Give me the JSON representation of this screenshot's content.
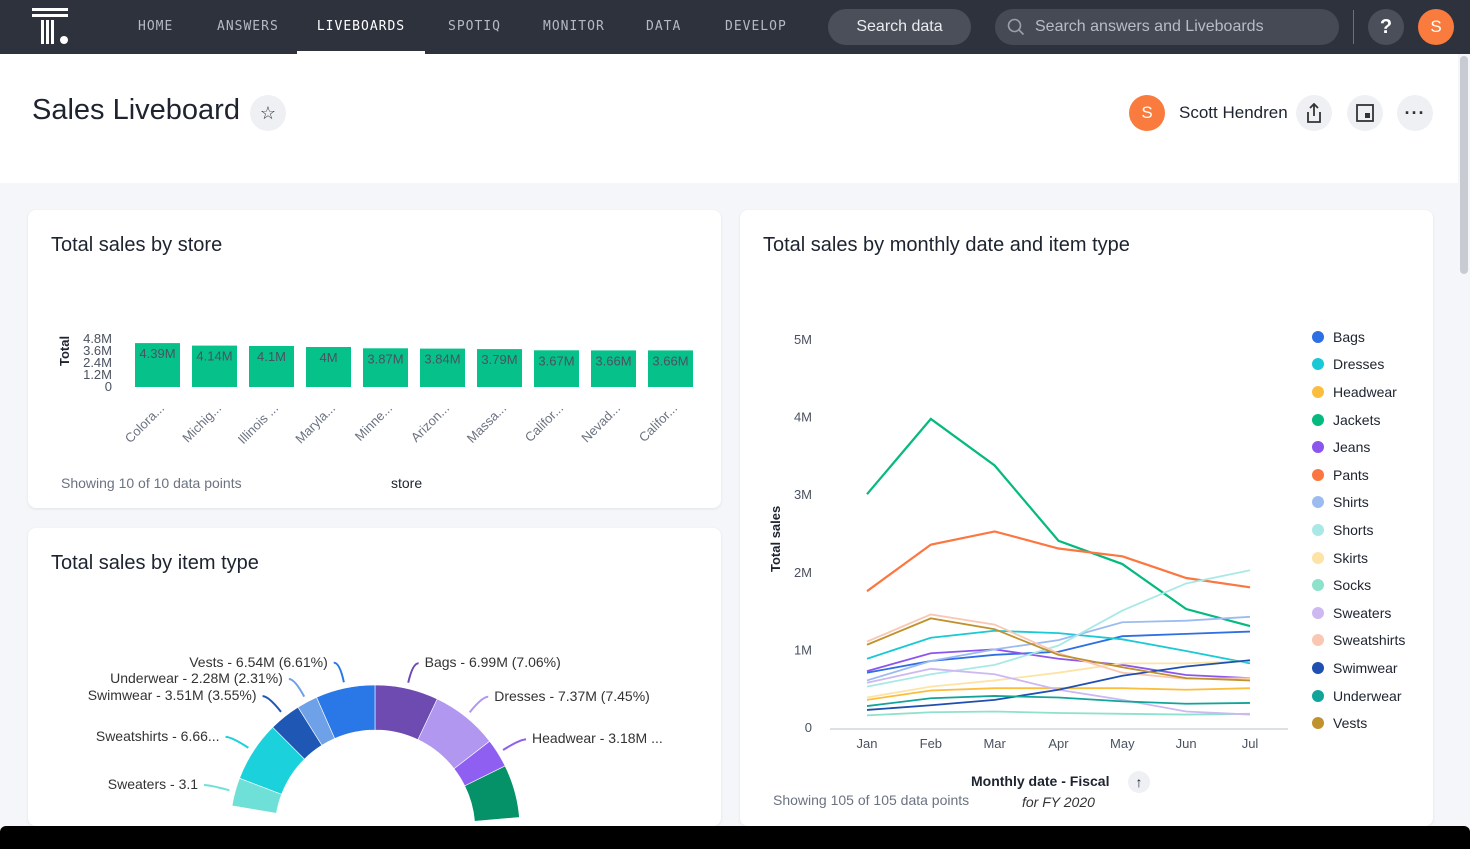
{
  "nav": {
    "items": [
      "HOME",
      "ANSWERS",
      "LIVEBOARDS",
      "SPOTIQ",
      "MONITOR",
      "DATA",
      "DEVELOP"
    ],
    "active": "LIVEBOARDS",
    "search_data": "Search data",
    "search_placeholder": "Search answers and Liveboards",
    "help": "?",
    "avatar": "S"
  },
  "header": {
    "title": "Sales Liveboard",
    "user_initial": "S",
    "user_name": "Scott Hendren"
  },
  "chart_data": [
    {
      "type": "bar",
      "title": "Total sales by store",
      "ylabel": "Total",
      "xlabel": "store",
      "yticks": [
        "4.8M",
        "3.6M",
        "2.4M",
        "1.2M",
        "0"
      ],
      "ylim": [
        0,
        4.8
      ],
      "categories": [
        "Colora...",
        "Michig...",
        "Illinois ...",
        "Maryla...",
        "Minne...",
        "Arizon...",
        "Massa...",
        "Califor...",
        "Nevad...",
        "Califor..."
      ],
      "values": [
        4.39,
        4.14,
        4.1,
        4.0,
        3.87,
        3.84,
        3.79,
        3.67,
        3.66,
        3.66
      ],
      "labels": [
        "4.39M",
        "4.14M",
        "4.1M",
        "4M",
        "3.87M",
        "3.84M",
        "3.79M",
        "3.67M",
        "3.66M",
        "3.66M"
      ],
      "color": "#06c189",
      "footer": "Showing 10 of 10 data points"
    },
    {
      "type": "line",
      "title": "Total sales by monthly date and item type",
      "ylabel": "Total sales",
      "xlabel": "Monthly date - Fiscal",
      "xsub": "for FY 2020",
      "ylim": [
        0,
        5
      ],
      "yticks": [
        "5M",
        "4M",
        "3M",
        "2M",
        "1M",
        "0"
      ],
      "x": [
        "Jan",
        "Feb",
        "Mar",
        "Apr",
        "May",
        "Jun",
        "Jul"
      ],
      "footer": "Showing 105 of 105 data points",
      "legend": "right",
      "series": [
        {
          "name": "Bags",
          "color": "#2f6fe4",
          "values": [
            0.7,
            0.85,
            0.93,
            0.97,
            1.17,
            1.2,
            1.23
          ]
        },
        {
          "name": "Dresses",
          "color": "#1bc8d6",
          "values": [
            0.88,
            1.15,
            1.24,
            1.21,
            1.13,
            0.98,
            0.82
          ]
        },
        {
          "name": "Headwear",
          "color": "#fbbd3d",
          "values": [
            0.35,
            0.47,
            0.5,
            0.5,
            0.5,
            0.48,
            0.5
          ]
        },
        {
          "name": "Jackets",
          "color": "#06b97f",
          "values": [
            3.0,
            3.97,
            3.37,
            2.4,
            2.1,
            1.52,
            1.3
          ]
        },
        {
          "name": "Jeans",
          "color": "#8c55ee",
          "values": [
            0.72,
            0.95,
            1.0,
            0.88,
            0.8,
            0.67,
            0.63
          ]
        },
        {
          "name": "Pants",
          "color": "#fb7640",
          "values": [
            1.75,
            2.35,
            2.52,
            2.3,
            2.2,
            1.92,
            1.8
          ]
        },
        {
          "name": "Shirts",
          "color": "#9cbcf1",
          "values": [
            0.6,
            0.85,
            1.0,
            1.12,
            1.35,
            1.37,
            1.42
          ]
        },
        {
          "name": "Shorts",
          "color": "#a8e9e6",
          "values": [
            0.52,
            0.68,
            0.8,
            1.05,
            1.5,
            1.85,
            2.02
          ]
        },
        {
          "name": "Skirts",
          "color": "#fde3a6",
          "values": [
            0.38,
            0.52,
            0.6,
            0.7,
            0.82,
            0.82,
            0.85
          ]
        },
        {
          "name": "Socks",
          "color": "#8ee1cc",
          "values": [
            0.15,
            0.19,
            0.2,
            0.18,
            0.17,
            0.16,
            0.17
          ]
        },
        {
          "name": "Sweaters",
          "color": "#cdb8f2",
          "values": [
            0.57,
            0.75,
            0.68,
            0.48,
            0.35,
            0.2,
            0.16
          ]
        },
        {
          "name": "Sweatshirts",
          "color": "#fac7b3",
          "values": [
            1.1,
            1.45,
            1.32,
            0.95,
            0.7,
            0.62,
            0.63
          ]
        },
        {
          "name": "Swimwear",
          "color": "#1f4fb0",
          "values": [
            0.22,
            0.28,
            0.35,
            0.48,
            0.66,
            0.78,
            0.86
          ]
        },
        {
          "name": "Underwear",
          "color": "#11a59a",
          "values": [
            0.27,
            0.37,
            0.4,
            0.38,
            0.33,
            0.3,
            0.31
          ]
        },
        {
          "name": "Vests",
          "color": "#c0922e",
          "values": [
            1.06,
            1.4,
            1.26,
            0.93,
            0.77,
            0.63,
            0.6
          ]
        }
      ]
    },
    {
      "type": "pie",
      "title": "Total sales by item type",
      "clockwise": [
        {
          "label": "Bags - 6.99M (7.06%)",
          "pct": 7.06,
          "color": "#6d4bb0"
        },
        {
          "label": "Dresses - 7.37M (7.45%)",
          "pct": 7.45,
          "color": "#b197f0"
        },
        {
          "label": "Headwear - 3.18M ...",
          "pct": 3.21,
          "color": "#8e5ff0"
        },
        {
          "label": "",
          "pct": 20,
          "color": "#069268"
        }
      ],
      "counterclockwise": [
        {
          "label": "Vests - 6.54M (6.61%)",
          "pct": 6.61,
          "color": "#2a78e8"
        },
        {
          "label": "Underwear - 2.28M (2.31%)",
          "pct": 2.31,
          "color": "#6fa1e8"
        },
        {
          "label": "Swimwear - 3.51M (3.55%)",
          "pct": 3.55,
          "color": "#1f58b4"
        },
        {
          "label": "Sweatshirts - 6.66...",
          "pct": 6.73,
          "color": "#1ad1dc"
        },
        {
          "label": "Sweaters - 3.1",
          "pct": 3.13,
          "color": "#6fe0d8"
        }
      ]
    }
  ]
}
